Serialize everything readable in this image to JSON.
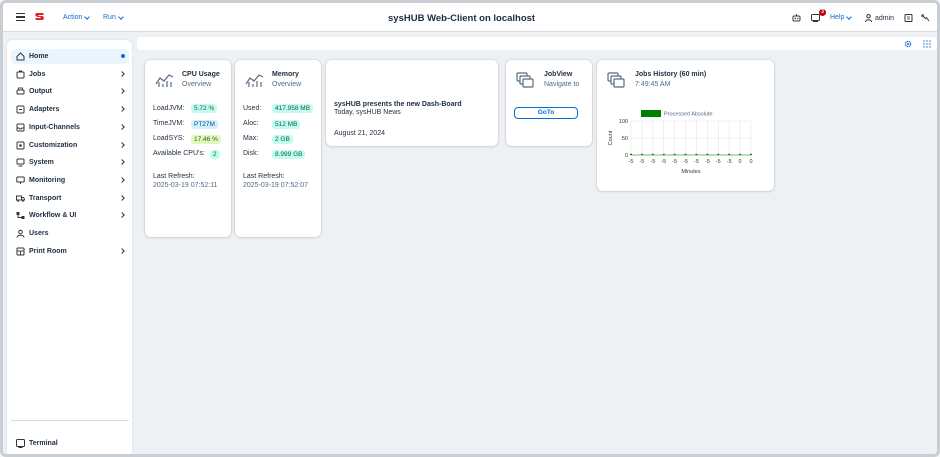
{
  "header": {
    "title": "sysHUB Web-Client on localhost",
    "action_label": "Action",
    "run_label": "Run",
    "help_label": "Help",
    "user_label": "admin",
    "notification_count": "3",
    "brand_color": "#e0242a",
    "accent_color": "#0a6ed1"
  },
  "sidebar": {
    "items": [
      {
        "label": "Home",
        "icon": "home-icon"
      },
      {
        "label": "Jobs",
        "icon": "jobs-icon"
      },
      {
        "label": "Output",
        "icon": "printer-icon"
      },
      {
        "label": "Adapters",
        "icon": "adapter-icon"
      },
      {
        "label": "Input-Channels",
        "icon": "inbox-icon"
      },
      {
        "label": "Customization",
        "icon": "customization-icon"
      },
      {
        "label": "System",
        "icon": "system-icon"
      },
      {
        "label": "Monitoring",
        "icon": "monitor-icon"
      },
      {
        "label": "Transport",
        "icon": "truck-icon"
      },
      {
        "label": "Workflow & UI",
        "icon": "workflow-icon"
      },
      {
        "label": "Users",
        "icon": "users-icon"
      },
      {
        "label": "Print Room",
        "icon": "print-room-icon"
      }
    ],
    "footer_label": "Terminal"
  },
  "cards": {
    "cpu": {
      "title": "CPU Usage",
      "subtitle": "Overview",
      "rows": [
        {
          "label": "LoadJVM:",
          "value": "5.72 %"
        },
        {
          "label": "TimeJVM:",
          "value": "PT27M"
        },
        {
          "label": "LoadSYS:",
          "value": "17.46 %"
        },
        {
          "label": "Available CPU's:",
          "value": "2"
        }
      ],
      "refresh_label": "Last Refresh:",
      "refresh_value": "2025-03-19 07:52:11"
    },
    "memory": {
      "title": "Memory",
      "subtitle": "Overview",
      "rows": [
        {
          "label": "Used:",
          "value": "417.958 MB"
        },
        {
          "label": "Aloc:",
          "value": "512 MB"
        },
        {
          "label": "Max:",
          "value": "2 GB"
        },
        {
          "label": "Disk:",
          "value": "8.999 GB"
        }
      ],
      "refresh_label": "Last Refresh:",
      "refresh_value": "2025-03-19 07:52:07"
    },
    "news": {
      "headline": "sysHUB presents the new Dash-Board",
      "source": "Today, sysHUB News",
      "date": "August 21, 2024"
    },
    "jobview": {
      "title": "JobView",
      "subtitle": "Navigate to",
      "button_label": "GoTo"
    },
    "history": {
      "title": "Jobs History (60 min)",
      "subtitle": "7:49:45 AM"
    }
  },
  "chart_data": {
    "type": "bar",
    "categories": [
      "-5",
      "-5",
      "-5",
      "-5",
      "-5",
      "-5",
      "-5",
      "-5",
      "-5",
      "-5",
      "0",
      "0"
    ],
    "series": [
      {
        "name": "Processed Absolute",
        "values": [
          0,
          0,
          0,
          0,
          0,
          0,
          0,
          0,
          0,
          0,
          0,
          0
        ],
        "color": "#008000"
      }
    ],
    "title": "",
    "xlabel": "Minutes",
    "ylabel": "Count",
    "yticks": [
      "100",
      "50",
      "0"
    ],
    "ylim": [
      0,
      100
    ],
    "grid": true,
    "legend": "top"
  }
}
